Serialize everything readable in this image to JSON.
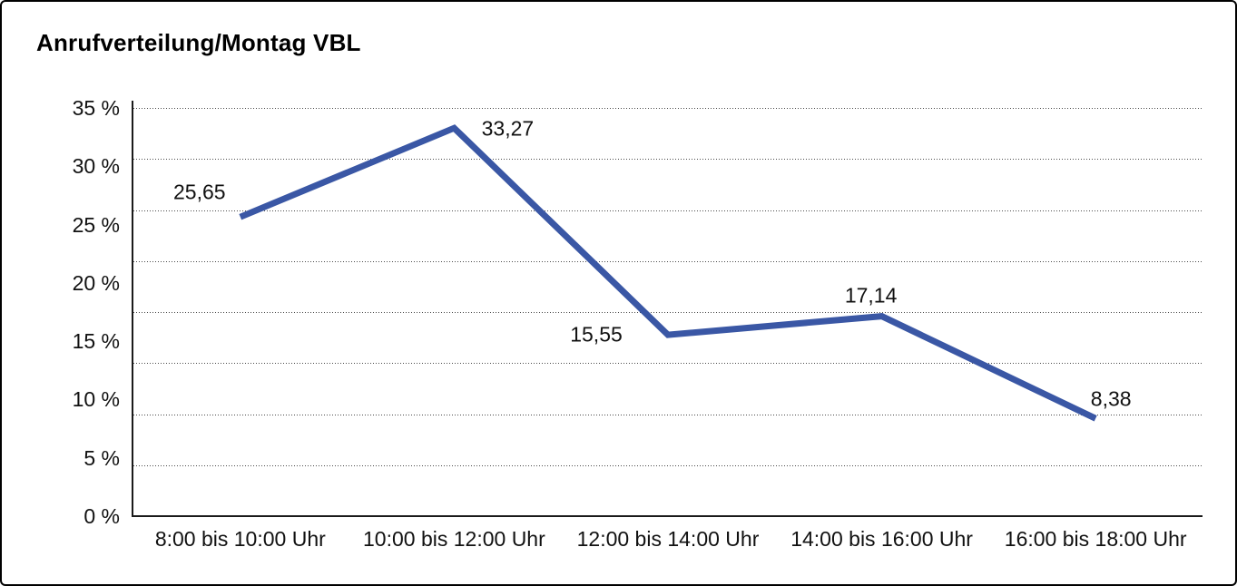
{
  "window": {
    "title": "Anrufverteilung/Montag VBL"
  },
  "chart_data": {
    "type": "line",
    "title": "Anrufverteilung/Montag VBL",
    "categories": [
      "8:00 bis 10:00 Uhr",
      "10:00 bis 12:00 Uhr",
      "12:00 bis 14:00 Uhr",
      "14:00 bis 16:00 Uhr",
      "16:00 bis 18:00 Uhr"
    ],
    "series": [
      {
        "name": "Anrufverteilung Montag VBL",
        "values": [
          25.65,
          33.27,
          15.55,
          17.14,
          8.38
        ],
        "point_labels": [
          "25,65",
          "33,27",
          "15,55",
          "17,14",
          "8,38"
        ]
      }
    ],
    "xlabel": "",
    "ylabel": "",
    "ylim": [
      0,
      35
    ],
    "ytick_values": [
      35,
      30,
      25,
      20,
      15,
      10,
      5,
      0
    ],
    "ytick_labels": [
      "35 %",
      "30 %",
      "25 %",
      "20 %",
      "15 %",
      "10 %",
      "5 %",
      "0 %"
    ],
    "grid": "horizontal dotted, 8 equal bands, solid baseline",
    "grid_intervals": 8,
    "legend": "none",
    "colors": {
      "line": "#3A57A5",
      "axis": "#1a1a1a",
      "text": "#111111",
      "gridline": "#4a4a4a",
      "background": "#ffffff",
      "frame_border": "#000000"
    }
  }
}
